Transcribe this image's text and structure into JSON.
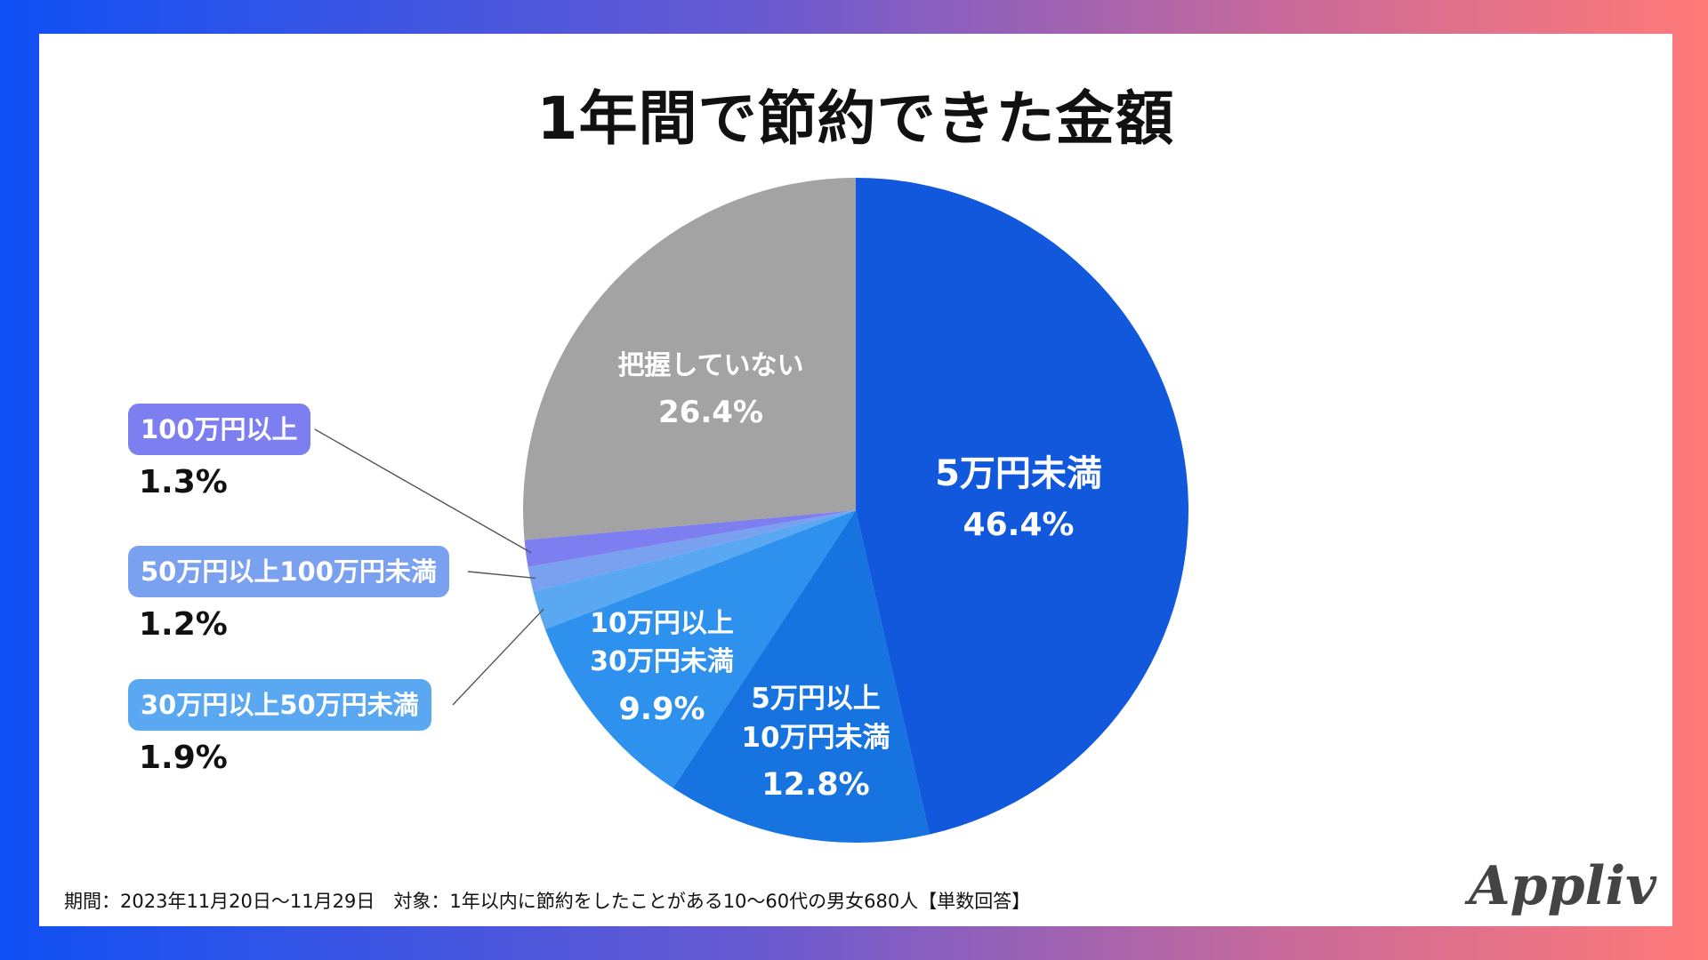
{
  "title": "1年間で節約できた金額",
  "chart_data": {
    "type": "pie",
    "title": "1年間で節約できた金額",
    "start": "12 o'clock",
    "direction": "clockwise",
    "slices": [
      {
        "label": "5万円未満",
        "value": 46.4,
        "value_label": "46.4%",
        "color": "#1158dc"
      },
      {
        "label": "5万円以上10万円未満",
        "label_lines": [
          "5万円以上",
          "10万円未満"
        ],
        "value": 12.8,
        "value_label": "12.8%",
        "color": "#1673e0"
      },
      {
        "label": "10万円以上30万円未満",
        "label_lines": [
          "10万円以上",
          "30万円未満"
        ],
        "value": 9.9,
        "value_label": "9.9%",
        "color": "#2f91ee"
      },
      {
        "label": "30万円以上50万円未満",
        "value": 1.9,
        "value_label": "1.9%",
        "color": "#5aa8f1"
      },
      {
        "label": "50万円以上100万円未満",
        "value": 1.2,
        "value_label": "1.2%",
        "color": "#7aa0f0"
      },
      {
        "label": "100万円以上",
        "value": 1.3,
        "value_label": "1.3%",
        "color": "#7d7ff0"
      },
      {
        "label": "把握していない",
        "value": 26.4,
        "value_label": "26.4%",
        "color": "#a3a3a3"
      }
    ]
  },
  "footer": "期間：2023年11月20日〜11月29日　対象：1年以内に節約をしたことがある10〜60代の男女680人【単数回答】",
  "logo": "Appliv"
}
